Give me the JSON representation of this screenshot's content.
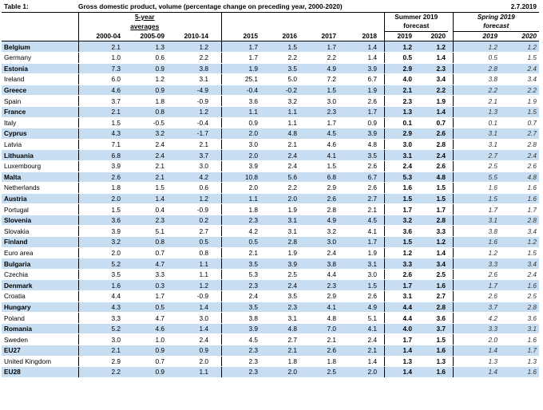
{
  "header": {
    "table_label": "Table 1:",
    "description": "Gross domestic product, volume (percentage change on preceding year, 2000-2020)",
    "date": "2.7.2019",
    "group_avg_line1": "5-year",
    "group_avg_line2": "averages",
    "group_summer_line1": "Summer 2019",
    "group_summer_line2": "forecast",
    "group_spring_line1": "Spring 2019",
    "group_spring_line2": "forecast",
    "columns": [
      "2000-04",
      "2005-09",
      "2010-14",
      "2015",
      "2016",
      "2017",
      "2018",
      "2019",
      "2020",
      "2019",
      "2020"
    ]
  },
  "rows": [
    {
      "name": "Belgium",
      "v": [
        "2.1",
        "1.3",
        "1.2",
        "1.7",
        "1.5",
        "1.7",
        "1.4",
        "1.2",
        "1.2",
        "1.2",
        "1.2"
      ]
    },
    {
      "name": "Germany",
      "v": [
        "1.0",
        "0.6",
        "2.2",
        "1.7",
        "2.2",
        "2.2",
        "1.4",
        "0.5",
        "1.4",
        "0.5",
        "1.5"
      ]
    },
    {
      "name": "Estonia",
      "v": [
        "7.3",
        "0.9",
        "3.8",
        "1.9",
        "3.5",
        "4.9",
        "3.9",
        "2.9",
        "2.3",
        "2.8",
        "2.4"
      ]
    },
    {
      "name": "Ireland",
      "v": [
        "6.0",
        "1.2",
        "3.1",
        "25.1",
        "5.0",
        "7.2",
        "6.7",
        "4.0",
        "3.4",
        "3.8",
        "3.4"
      ]
    },
    {
      "name": "Greece",
      "v": [
        "4.6",
        "0.9",
        "-4.9",
        "-0.4",
        "-0.2",
        "1.5",
        "1.9",
        "2.1",
        "2.2",
        "2.2",
        "2.2"
      ]
    },
    {
      "name": "Spain",
      "v": [
        "3.7",
        "1.8",
        "-0.9",
        "3.6",
        "3.2",
        "3.0",
        "2.6",
        "2.3",
        "1.9",
        "2.1",
        "1.9"
      ]
    },
    {
      "name": "France",
      "v": [
        "2.1",
        "0.8",
        "1.2",
        "1.1",
        "1.1",
        "2.3",
        "1.7",
        "1.3",
        "1.4",
        "1.3",
        "1.5"
      ]
    },
    {
      "name": "Italy",
      "v": [
        "1.5",
        "-0.5",
        "-0.4",
        "0.9",
        "1.1",
        "1.7",
        "0.9",
        "0.1",
        "0.7",
        "0.1",
        "0.7"
      ]
    },
    {
      "name": "Cyprus",
      "v": [
        "4.3",
        "3.2",
        "-1.7",
        "2.0",
        "4.8",
        "4.5",
        "3.9",
        "2.9",
        "2.6",
        "3.1",
        "2.7"
      ]
    },
    {
      "name": "Latvia",
      "v": [
        "7.1",
        "2.4",
        "2.1",
        "3.0",
        "2.1",
        "4.6",
        "4.8",
        "3.0",
        "2.8",
        "3.1",
        "2.8"
      ]
    },
    {
      "name": "Lithuania",
      "v": [
        "6.8",
        "2.4",
        "3.7",
        "2.0",
        "2.4",
        "4.1",
        "3.5",
        "3.1",
        "2.4",
        "2.7",
        "2.4"
      ]
    },
    {
      "name": "Luxembourg",
      "v": [
        "3.9",
        "2.1",
        "3.0",
        "3.9",
        "2.4",
        "1.5",
        "2.6",
        "2.4",
        "2.6",
        "2.5",
        "2.6"
      ]
    },
    {
      "name": "Malta",
      "v": [
        "2.6",
        "2.1",
        "4.2",
        "10.8",
        "5.6",
        "6.8",
        "6.7",
        "5.3",
        "4.8",
        "5.5",
        "4.8"
      ]
    },
    {
      "name": "Netherlands",
      "v": [
        "1.8",
        "1.5",
        "0.6",
        "2.0",
        "2.2",
        "2.9",
        "2.6",
        "1.6",
        "1.5",
        "1.6",
        "1.6"
      ]
    },
    {
      "name": "Austria",
      "v": [
        "2.0",
        "1.4",
        "1.2",
        "1.1",
        "2.0",
        "2.6",
        "2.7",
        "1.5",
        "1.5",
        "1.5",
        "1.6"
      ]
    },
    {
      "name": "Portugal",
      "v": [
        "1.5",
        "0.4",
        "-0.9",
        "1.8",
        "1.9",
        "2.8",
        "2.1",
        "1.7",
        "1.7",
        "1.7",
        "1.7"
      ]
    },
    {
      "name": "Slovenia",
      "v": [
        "3.6",
        "2.3",
        "0.2",
        "2.3",
        "3.1",
        "4.9",
        "4.5",
        "3.2",
        "2.8",
        "3.1",
        "2.8"
      ]
    },
    {
      "name": "Slovakia",
      "v": [
        "3.9",
        "5.1",
        "2.7",
        "4.2",
        "3.1",
        "3.2",
        "4.1",
        "3.6",
        "3.3",
        "3.8",
        "3.4"
      ]
    },
    {
      "name": "Finland",
      "v": [
        "3.2",
        "0.8",
        "0.5",
        "0.5",
        "2.8",
        "3.0",
        "1.7",
        "1.5",
        "1.2",
        "1.6",
        "1.2"
      ]
    },
    {
      "name": "Euro area",
      "v": [
        "2.0",
        "0.7",
        "0.8",
        "2.1",
        "1.9",
        "2.4",
        "1.9",
        "1.2",
        "1.4",
        "1.2",
        "1.5"
      ]
    },
    {
      "name": "Bulgaria",
      "v": [
        "5.2",
        "4.7",
        "1.1",
        "3.5",
        "3.9",
        "3.8",
        "3.1",
        "3.3",
        "3.4",
        "3.3",
        "3.4"
      ]
    },
    {
      "name": "Czechia",
      "v": [
        "3.5",
        "3.3",
        "1.1",
        "5.3",
        "2.5",
        "4.4",
        "3.0",
        "2.6",
        "2.5",
        "2.6",
        "2.4"
      ]
    },
    {
      "name": "Denmark",
      "v": [
        "1.6",
        "0.3",
        "1.2",
        "2.3",
        "2.4",
        "2.3",
        "1.5",
        "1.7",
        "1.6",
        "1.7",
        "1.6"
      ]
    },
    {
      "name": "Croatia",
      "v": [
        "4.4",
        "1.7",
        "-0.9",
        "2.4",
        "3.5",
        "2.9",
        "2.6",
        "3.1",
        "2.7",
        "2.6",
        "2.5"
      ]
    },
    {
      "name": "Hungary",
      "v": [
        "4.3",
        "0.5",
        "1.4",
        "3.5",
        "2.3",
        "4.1",
        "4.9",
        "4.4",
        "2.8",
        "3.7",
        "2.8"
      ]
    },
    {
      "name": "Poland",
      "v": [
        "3.3",
        "4.7",
        "3.0",
        "3.8",
        "3.1",
        "4.8",
        "5.1",
        "4.4",
        "3.6",
        "4.2",
        "3.6"
      ]
    },
    {
      "name": "Romania",
      "v": [
        "5.2",
        "4.6",
        "1.4",
        "3.9",
        "4.8",
        "7.0",
        "4.1",
        "4.0",
        "3.7",
        "3.3",
        "3.1"
      ]
    },
    {
      "name": "Sweden",
      "v": [
        "3.0",
        "1.0",
        "2.4",
        "4.5",
        "2.7",
        "2.1",
        "2.4",
        "1.7",
        "1.5",
        "2.0",
        "1.6"
      ]
    },
    {
      "name": "EU27",
      "v": [
        "2.1",
        "0.9",
        "0.9",
        "2.3",
        "2.1",
        "2.6",
        "2.1",
        "1.4",
        "1.6",
        "1.4",
        "1.7"
      ]
    },
    {
      "name": "United Kingdom",
      "v": [
        "2.9",
        "0.7",
        "2.0",
        "2.3",
        "1.8",
        "1.8",
        "1.4",
        "1.3",
        "1.3",
        "1.3",
        "1.3"
      ]
    },
    {
      "name": "EU28",
      "v": [
        "2.2",
        "0.9",
        "1.1",
        "2.3",
        "2.0",
        "2.5",
        "2.0",
        "1.4",
        "1.6",
        "1.4",
        "1.6"
      ]
    }
  ],
  "colors": {
    "shade": "#c7def2",
    "rule": "#000000"
  }
}
